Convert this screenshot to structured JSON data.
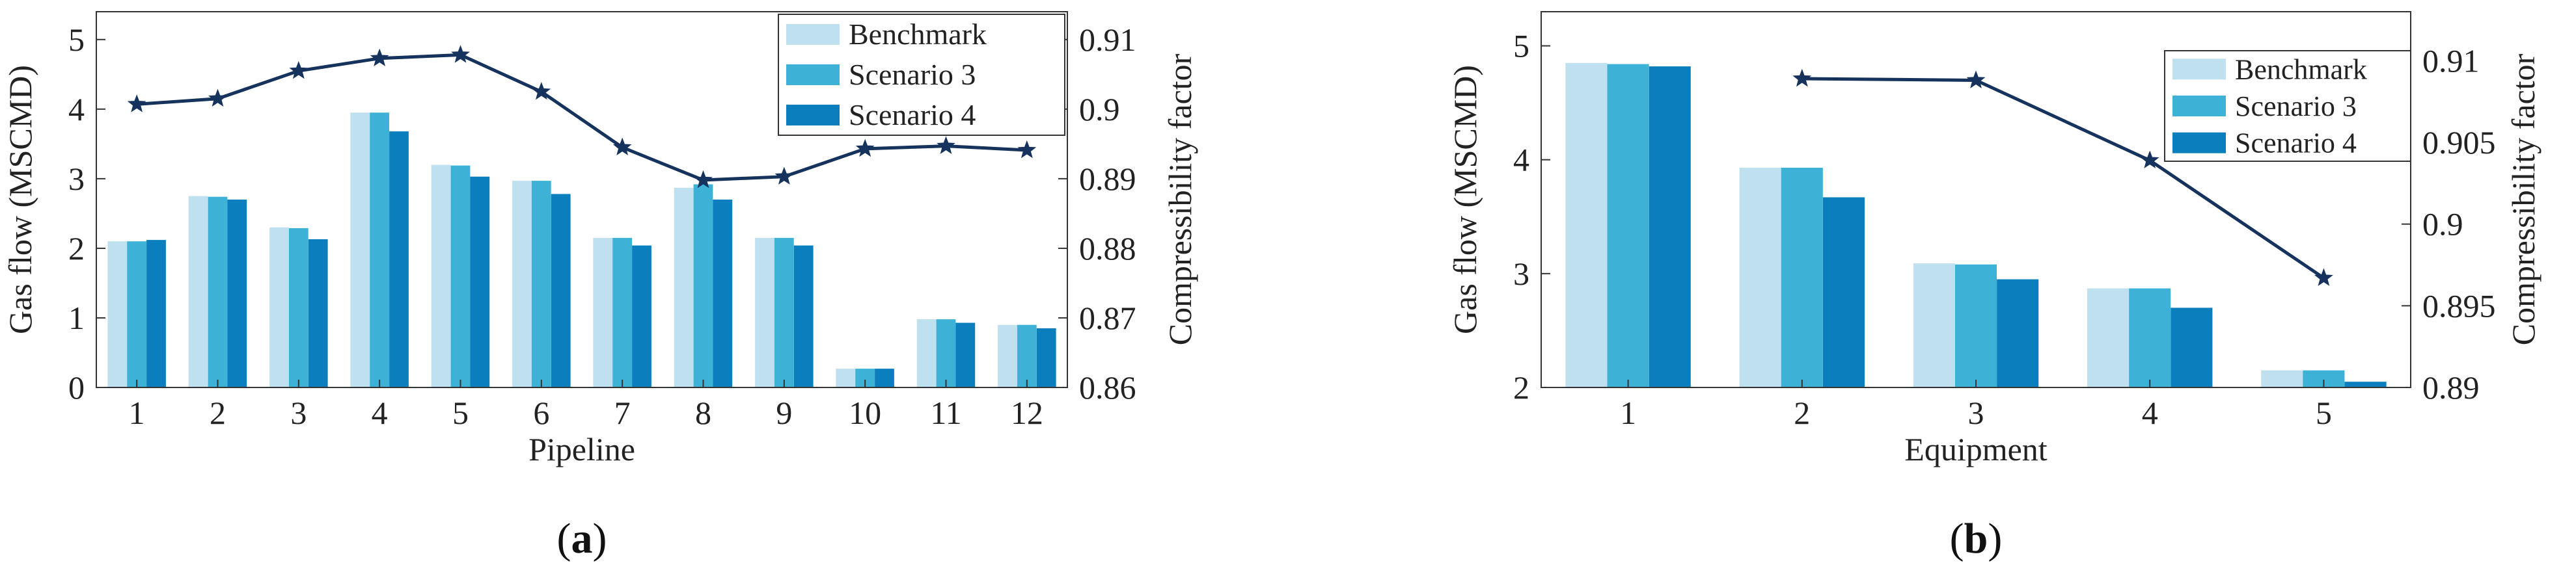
{
  "chart_data": [
    {
      "type": "bar",
      "panel_label_prefix": "(",
      "panel_label": "a",
      "panel_label_suffix": ")",
      "xlabel": "Pipeline",
      "ylabel": "Gas flow (MSCMD)",
      "y2label": "Compressibility factor",
      "categories": [
        "1",
        "2",
        "3",
        "4",
        "5",
        "6",
        "7",
        "8",
        "9",
        "10",
        "11",
        "12"
      ],
      "ylim": [
        0,
        5.4
      ],
      "yticks": [
        0,
        1,
        2,
        3,
        4,
        5
      ],
      "y2lim": [
        0.86,
        0.914
      ],
      "y2ticks": [
        0.86,
        0.87,
        0.88,
        0.89,
        0.9,
        0.91
      ],
      "y2ticklabels": [
        "0.86",
        "0.87",
        "0.88",
        "0.89",
        "0.9",
        "0.91"
      ],
      "legend_position": "top-right",
      "grid": false,
      "series": [
        {
          "name": "Benchmark",
          "color": "#bfe0ef",
          "values": [
            2.1,
            2.75,
            2.3,
            3.95,
            3.2,
            2.97,
            2.15,
            2.87,
            2.15,
            0.27,
            0.98,
            0.9
          ]
        },
        {
          "name": "Scenario 3",
          "color": "#3eb2d6",
          "values": [
            2.1,
            2.74,
            2.29,
            3.95,
            3.19,
            2.97,
            2.15,
            2.92,
            2.15,
            0.27,
            0.98,
            0.9
          ]
        },
        {
          "name": "Scenario 4",
          "color": "#0b7fbd",
          "values": [
            2.12,
            2.7,
            2.13,
            3.68,
            3.03,
            2.78,
            2.04,
            2.7,
            2.04,
            0.27,
            0.93,
            0.85
          ]
        }
      ],
      "line": {
        "axis": "right",
        "color": "#16335e",
        "x": [
          1,
          2,
          3,
          4,
          5,
          6,
          7,
          8,
          9,
          10,
          11,
          12
        ],
        "values": [
          0.9007,
          0.9015,
          0.9055,
          0.9073,
          0.9078,
          0.9025,
          0.8945,
          0.8898,
          0.8903,
          0.8943,
          0.8947,
          0.8941
        ]
      }
    },
    {
      "type": "bar",
      "panel_label_prefix": "(",
      "panel_label": "b",
      "panel_label_suffix": ")",
      "xlabel": "Equipment",
      "ylabel": "Gas flow (MSCMD)",
      "y2label": "Compressibility factor",
      "categories": [
        "1",
        "2",
        "3",
        "4",
        "5"
      ],
      "ylim": [
        2,
        5.3
      ],
      "yticks": [
        2,
        3,
        4,
        5
      ],
      "y2lim": [
        0.89,
        0.913
      ],
      "y2ticks": [
        0.89,
        0.895,
        0.9,
        0.905,
        0.91
      ],
      "y2ticklabels": [
        "0.89",
        "0.895",
        "0.9",
        "0.905",
        "0.91"
      ],
      "legend_position": "top-right",
      "grid": false,
      "series": [
        {
          "name": "Benchmark",
          "color": "#bfe0ef",
          "values": [
            4.85,
            3.93,
            3.09,
            2.87,
            2.15
          ]
        },
        {
          "name": "Scenario 3",
          "color": "#3eb2d6",
          "values": [
            4.84,
            3.93,
            3.08,
            2.87,
            2.15
          ]
        },
        {
          "name": "Scenario 4",
          "color": "#0b7fbd",
          "values": [
            4.82,
            3.67,
            2.95,
            2.7,
            2.05
          ]
        }
      ],
      "line": {
        "axis": "right",
        "color": "#16335e",
        "x": [
          2,
          3,
          4,
          5
        ],
        "values": [
          0.9089,
          0.9088,
          0.9039,
          0.8967
        ]
      }
    }
  ]
}
